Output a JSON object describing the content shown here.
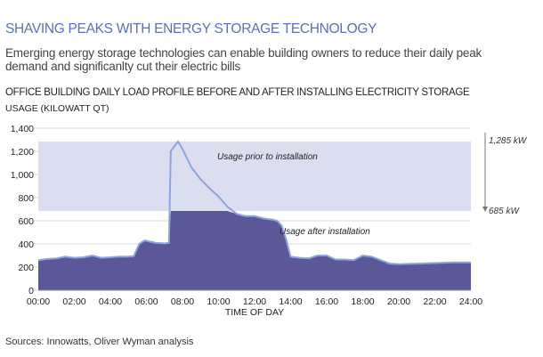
{
  "title": "SHAVING PEAKS WITH ENERGY STORAGE TECHNOLOGY",
  "subtitle": "Emerging energy storage technologies can enable building owners to reduce their daily peak demand and significanlty cut their electric bills",
  "source": "Sources: Innowatts, Oliver Wyman analysis",
  "colors": {
    "title": "#5b6fc0",
    "after_fill": "#5a5898",
    "before_line": "#8ea4e0",
    "band": "#dadeef"
  },
  "chart_data": {
    "type": "area",
    "title": "OFFICE BUILDING DAILY LOAD PROFILE BEFORE AND AFTER INSTALLING ELECTRICITY STORAGE",
    "ylabel": "USAGE (KILOWATT QT)",
    "xlabel": "TIME OF DAY",
    "ylim": [
      0,
      1400
    ],
    "yticks": [
      "0",
      "200",
      "400",
      "600",
      "800",
      "1,000",
      "1,200",
      "1,400"
    ],
    "xticks": [
      "00:00",
      "02:00",
      "04:00",
      "06:00",
      "08:00",
      "10:00",
      "12:00",
      "14:00",
      "16:00",
      "18:00",
      "20:00",
      "22:00",
      "24:00"
    ],
    "grid": true,
    "x_hours": [
      0,
      0.5,
      1,
      1.5,
      2,
      2.5,
      3,
      3.5,
      4,
      4.5,
      5,
      5.3,
      5.6,
      5.9,
      6.5,
      7,
      7.25,
      7.35,
      7.75,
      8,
      8.5,
      9,
      9.5,
      10,
      10.5,
      11,
      11.5,
      12,
      12.5,
      13,
      13.25,
      13.5,
      13.75,
      14,
      14.5,
      15,
      15.5,
      16,
      16.5,
      17,
      17.5,
      18,
      18.5,
      19,
      19.5,
      20,
      21,
      22,
      23,
      24
    ],
    "series": [
      {
        "name": "Usage prior to installation",
        "values": [
          260,
          270,
          275,
          290,
          280,
          285,
          300,
          280,
          285,
          290,
          290,
          295,
          400,
          430,
          410,
          405,
          410,
          1200,
          1285,
          1220,
          1060,
          960,
          880,
          810,
          720,
          660,
          640,
          640,
          620,
          610,
          600,
          560,
          440,
          290,
          280,
          275,
          300,
          300,
          265,
          265,
          260,
          300,
          290,
          260,
          230,
          225,
          230,
          235,
          240,
          240
        ]
      },
      {
        "name": "Usage after installation",
        "cap": 685
      }
    ],
    "band": {
      "from": 685,
      "to": 1285,
      "label_top": "1,285 kW",
      "label_bottom": "685 kW"
    }
  }
}
